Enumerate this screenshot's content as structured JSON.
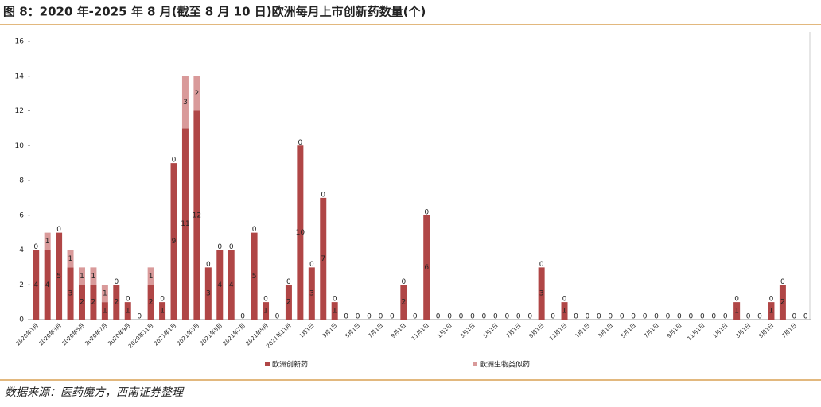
{
  "chart_data": {
    "type": "stacked_bar",
    "title": "图 8：2020 年-2025 年 8 月(截至 8 月 10 日)欧洲每月上市创新药数量(个)",
    "source": "数据来源：医药魔方，西南证券整理",
    "categories": [
      "2020年1月",
      null,
      "2020年3月",
      null,
      "2020年5月",
      null,
      "2020年7月",
      null,
      "2020年9月",
      null,
      "2020年11月",
      null,
      "2021年1月",
      null,
      "2021年3月",
      null,
      "2021年5月",
      null,
      "2021年7月",
      null,
      "2021年9月",
      null,
      "2021年11月",
      null,
      "1月1日",
      null,
      "3月1日",
      null,
      "5月1日",
      null,
      "7月1日",
      null,
      "9月1日",
      null,
      "11月1日",
      null,
      "1月1日",
      null,
      "3月1日",
      null,
      "5月1日",
      null,
      "7月1日",
      null,
      "9月1日",
      null,
      "11月1日",
      null,
      "1月1日",
      null,
      "3月1日",
      null,
      "5月1日",
      null,
      "7月1日",
      null,
      "9月1日",
      null,
      "11月1日",
      null,
      "1月1日",
      null,
      "3月1日",
      null,
      "5月1日",
      null,
      "7月1日",
      null
    ],
    "series": [
      {
        "name": "欧洲创新药",
        "color": "#b04646",
        "values": [
          4,
          4,
          5,
          3,
          2,
          2,
          1,
          2,
          1,
          0,
          2,
          1,
          9,
          11,
          12,
          3,
          4,
          4,
          0,
          5,
          1,
          0,
          2,
          10,
          3,
          7,
          1,
          0,
          0,
          0,
          0,
          0,
          2,
          0,
          6,
          0,
          0,
          0,
          0,
          0,
          0,
          0,
          0,
          0,
          3,
          0,
          1,
          0,
          0,
          0,
          0,
          0,
          0,
          0,
          0,
          0,
          0,
          0,
          0,
          0,
          0,
          1,
          0,
          0,
          1,
          2,
          0,
          0
        ]
      },
      {
        "name": "欧洲生物类似药",
        "color": "#d99a9a",
        "values": [
          0,
          1,
          0,
          1,
          1,
          1,
          1,
          0,
          0,
          0,
          1,
          0,
          0,
          3,
          2,
          0,
          0,
          0,
          0,
          0,
          0,
          0,
          0,
          0,
          0,
          0,
          0,
          0,
          0,
          0,
          0,
          0,
          0,
          0,
          0,
          0,
          0,
          0,
          0,
          0,
          0,
          0,
          0,
          0,
          0,
          0,
          0,
          0,
          0,
          0,
          0,
          0,
          0,
          0,
          0,
          0,
          0,
          0,
          0,
          0,
          0,
          0,
          0,
          0,
          0,
          0,
          0,
          0
        ]
      }
    ],
    "ylim": [
      0,
      16
    ],
    "yticks": [
      0,
      2,
      4,
      6,
      8,
      10,
      12,
      14,
      16
    ]
  }
}
